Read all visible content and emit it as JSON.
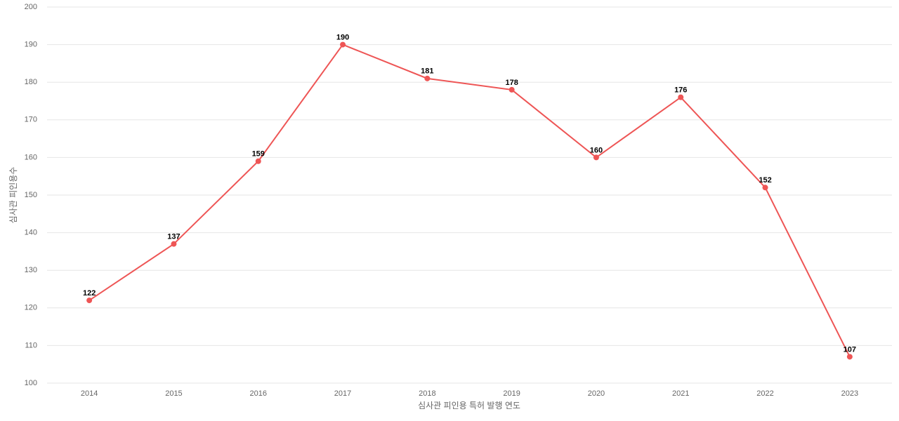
{
  "chart_data": {
    "type": "line",
    "x_label": "심사관 피인용 특허 발행 연도",
    "y_label": "심사관 피인용수",
    "categories": [
      "2014",
      "2015",
      "2016",
      "2017",
      "2018",
      "2019",
      "2020",
      "2021",
      "2022",
      "2023"
    ],
    "values": [
      122,
      137,
      159,
      190,
      181,
      178,
      160,
      176,
      152,
      107
    ],
    "color": "#ee5555",
    "ylim": [
      100,
      200
    ],
    "yticks": [
      100,
      110,
      120,
      130,
      140,
      150,
      160,
      170,
      180,
      190,
      200
    ],
    "grid": true
  }
}
